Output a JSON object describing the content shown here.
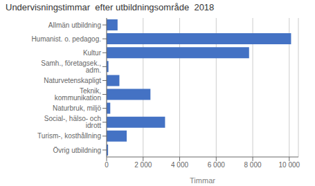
{
  "chart_data": {
    "type": "bar",
    "orientation": "horizontal",
    "title": "Undervisningstimmar  efter utbildningsområde  2018",
    "xlabel": "Timmar",
    "categories": [
      "Övrig utbildning",
      "Turism-, kosthållning",
      "Social-, hälso- och idrott",
      "Naturbruk, miljö",
      "Teknik, kommunikation",
      "Naturvetenskapligt",
      "Samh., företagsek., adm.",
      "Kultur",
      "Humanist. o. pedagog.",
      "Allmän utbildning"
    ],
    "values": [
      80,
      1100,
      3200,
      200,
      2400,
      700,
      100,
      7800,
      10100,
      600
    ],
    "color": "#4472C4",
    "xlim": [
      0,
      10500
    ],
    "xticks": [
      0,
      {
        "value": 2000,
        "label": "2 000"
      },
      {
        "value": 4000,
        "label": "4 000"
      },
      {
        "value": 6000,
        "label": "6 000"
      },
      {
        "value": 8000,
        "label": "8 000"
      },
      {
        "value": 10000,
        "label": "10 000"
      }
    ],
    "grid": true
  }
}
